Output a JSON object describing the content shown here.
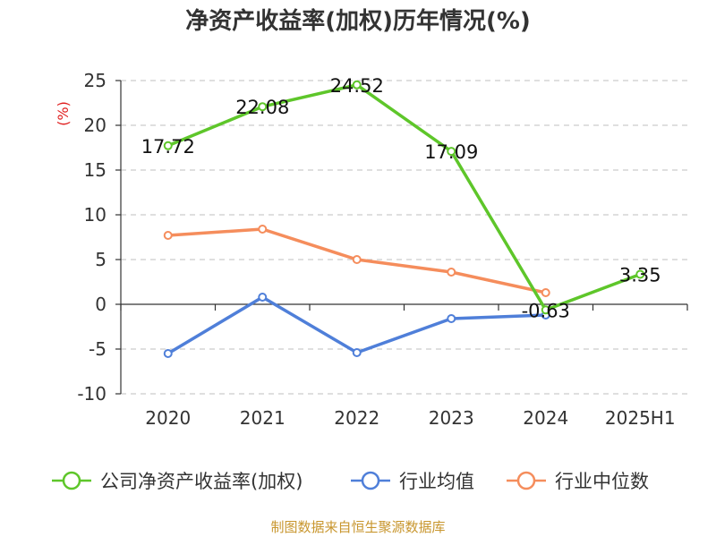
{
  "chart_data": {
    "type": "line",
    "title": "净资产收益率(加权)历年情况(%)",
    "ylabel": "(%)",
    "xlabel": "",
    "categories": [
      "2020",
      "2021",
      "2022",
      "2023",
      "2024",
      "2025H1"
    ],
    "ylim": [
      -10,
      25
    ],
    "yticks": [
      25,
      20,
      15,
      10,
      5,
      0,
      -5,
      -10
    ],
    "grid": true,
    "legend_position": "bottom",
    "series": [
      {
        "name": "公司净资产收益率(加权)",
        "color": "#5ec62a",
        "values": [
          17.72,
          22.08,
          24.52,
          17.09,
          -0.63,
          3.35
        ],
        "labels": [
          "17.72",
          "22.08",
          "24.52",
          "17.09",
          "-0.63",
          "3.35"
        ]
      },
      {
        "name": "行业均值",
        "color": "#4f7fd9",
        "values": [
          -5.5,
          0.8,
          -5.4,
          -1.6,
          -1.2,
          null
        ]
      },
      {
        "name": "行业中位数",
        "color": "#f58d5c",
        "values": [
          7.7,
          8.4,
          5.0,
          3.6,
          1.3,
          null
        ]
      }
    ]
  },
  "source": "制图数据来自恒生聚源数据库"
}
